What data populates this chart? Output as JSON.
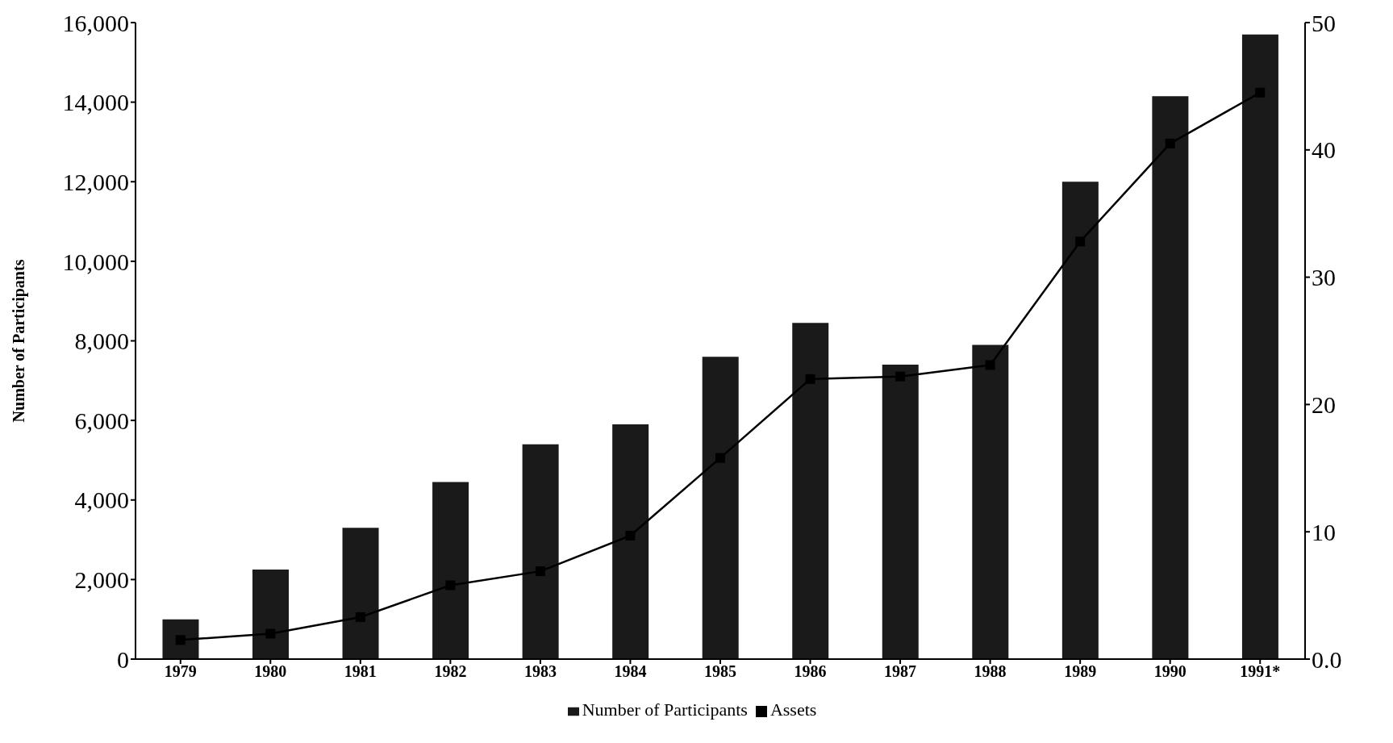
{
  "chart_data": {
    "type": "bar",
    "ylabel": "Number of Participants",
    "categories": [
      "1979",
      "1980",
      "1981",
      "1982",
      "1983",
      "1984",
      "1985",
      "1986",
      "1987",
      "1988",
      "1989",
      "1990",
      "1991*"
    ],
    "series": [
      {
        "name": "Number of Participants",
        "color": "#1a1a1a",
        "values": [
          1000,
          2250,
          3300,
          4450,
          5400,
          5900,
          7600,
          8450,
          7400,
          7900,
          12000,
          14150,
          15700
        ]
      },
      {
        "name": "Assets",
        "type": "line",
        "axis": "y2",
        "color": "#000000",
        "values": [
          1.5,
          2.0,
          3.3,
          5.8,
          6.9,
          9.7,
          15.8,
          22.0,
          22.2,
          23.1,
          32.8,
          40.5,
          44.5
        ]
      }
    ],
    "ylim": [
      0,
      16000
    ],
    "yticks": [
      {
        "value": 0,
        "label": "0"
      },
      {
        "value": 2000,
        "label": "2,000"
      },
      {
        "value": 4000,
        "label": "4,000"
      },
      {
        "value": 6000,
        "label": "6,000"
      },
      {
        "value": 8000,
        "label": "8,000"
      },
      {
        "value": 10000,
        "label": "10,000"
      },
      {
        "value": 12000,
        "label": "12,000"
      },
      {
        "value": 14000,
        "label": "14,000"
      },
      {
        "value": 16000,
        "label": "16,000"
      }
    ],
    "y2lim": [
      0,
      50
    ],
    "y2ticks": [
      {
        "value": 0,
        "label": "0.0"
      },
      10,
      20,
      30,
      40,
      50
    ],
    "grid": false,
    "legend": "bottom",
    "marker": "square",
    "line_style": "solid"
  }
}
